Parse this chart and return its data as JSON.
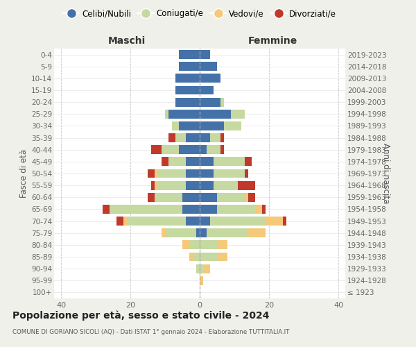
{
  "age_groups": [
    "100+",
    "95-99",
    "90-94",
    "85-89",
    "80-84",
    "75-79",
    "70-74",
    "65-69",
    "60-64",
    "55-59",
    "50-54",
    "45-49",
    "40-44",
    "35-39",
    "30-34",
    "25-29",
    "20-24",
    "15-19",
    "10-14",
    "5-9",
    "0-4"
  ],
  "birth_years": [
    "≤ 1923",
    "1924-1928",
    "1929-1933",
    "1934-1938",
    "1939-1943",
    "1944-1948",
    "1949-1953",
    "1954-1958",
    "1959-1963",
    "1964-1968",
    "1969-1973",
    "1974-1978",
    "1979-1983",
    "1984-1988",
    "1989-1993",
    "1994-1998",
    "1999-2003",
    "2004-2008",
    "2009-2013",
    "2014-2018",
    "2019-2023"
  ],
  "maschi": {
    "celibi": [
      0,
      0,
      0,
      0,
      0,
      1,
      4,
      5,
      5,
      4,
      4,
      4,
      6,
      4,
      6,
      9,
      7,
      7,
      7,
      6,
      6
    ],
    "coniugati": [
      0,
      0,
      1,
      2,
      3,
      9,
      17,
      21,
      8,
      8,
      8,
      5,
      5,
      3,
      2,
      1,
      0,
      0,
      0,
      0,
      0
    ],
    "vedovi": [
      0,
      0,
      0,
      1,
      2,
      1,
      1,
      0,
      0,
      1,
      1,
      0,
      0,
      0,
      0,
      0,
      0,
      0,
      0,
      0,
      0
    ],
    "divorziati": [
      0,
      0,
      0,
      0,
      0,
      0,
      2,
      2,
      2,
      1,
      2,
      2,
      3,
      2,
      0,
      0,
      0,
      0,
      0,
      0,
      0
    ]
  },
  "femmine": {
    "nubili": [
      0,
      0,
      0,
      0,
      0,
      2,
      3,
      5,
      5,
      4,
      4,
      4,
      2,
      3,
      7,
      9,
      6,
      4,
      6,
      5,
      3
    ],
    "coniugate": [
      0,
      0,
      1,
      5,
      5,
      12,
      16,
      11,
      8,
      7,
      9,
      9,
      4,
      3,
      5,
      4,
      1,
      0,
      0,
      0,
      0
    ],
    "vedove": [
      0,
      1,
      2,
      3,
      3,
      5,
      5,
      2,
      1,
      0,
      0,
      0,
      0,
      0,
      0,
      0,
      0,
      0,
      0,
      0,
      0
    ],
    "divorziate": [
      0,
      0,
      0,
      0,
      0,
      0,
      1,
      1,
      2,
      5,
      1,
      2,
      1,
      1,
      0,
      0,
      0,
      0,
      0,
      0,
      0
    ]
  },
  "colors": {
    "celibi": "#4472a8",
    "coniugati": "#c5d9a0",
    "vedovi": "#f5c97a",
    "divorziati": "#c0392b"
  },
  "xlim": 42,
  "title": "Popolazione per età, sesso e stato civile - 2024",
  "subtitle": "COMUNE DI GORIANO SICOLI (AQ) - Dati ISTAT 1° gennaio 2024 - Elaborazione TUTTITALIA.IT",
  "ylabel_left": "Fasce di età",
  "ylabel_right": "Anni di nascita",
  "xlabel_left": "Maschi",
  "xlabel_right": "Femmine",
  "bg_color": "#f0f0eb",
  "plot_bg_color": "#ffffff"
}
